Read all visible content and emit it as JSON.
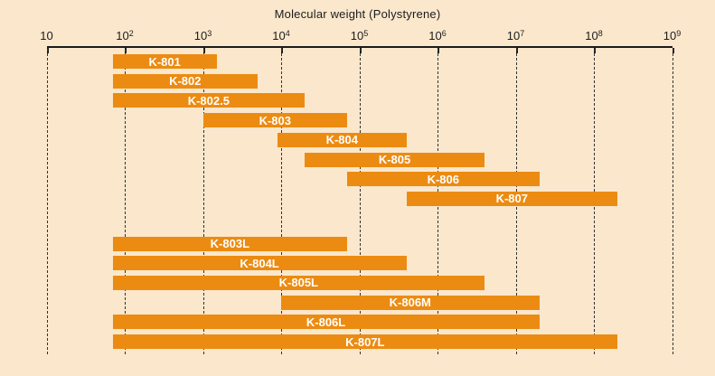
{
  "chart_data": {
    "type": "bar",
    "orientation": "horizontal-range",
    "title": "Molecular weight (Polystyrene)",
    "x_axis": {
      "scale": "log10",
      "min": 10,
      "max": 1000000000,
      "tick_labels": [
        "10",
        "10^2",
        "10^3",
        "10^4",
        "10^5",
        "10^6",
        "10^7",
        "10^8",
        "10^9"
      ],
      "grid": "dashed-vertical"
    },
    "legend": "none",
    "bars": [
      {
        "label": "K-801",
        "mw_from": 70,
        "mw_to": 1500,
        "section": 1
      },
      {
        "label": "K-802",
        "mw_from": 70,
        "mw_to": 5000,
        "section": 1
      },
      {
        "label": "K-802.5",
        "mw_from": 70,
        "mw_to": 20000,
        "section": 1
      },
      {
        "label": "K-803",
        "mw_from": 1000,
        "mw_to": 70000,
        "section": 1
      },
      {
        "label": "K-804",
        "mw_from": 9000,
        "mw_to": 400000,
        "section": 1
      },
      {
        "label": "K-805",
        "mw_from": 20000,
        "mw_to": 4000000,
        "section": 1
      },
      {
        "label": "K-806",
        "mw_from": 70000,
        "mw_to": 20000000,
        "section": 1
      },
      {
        "label": "K-807",
        "mw_from": 400000,
        "mw_to": 200000000,
        "section": 1
      },
      {
        "label": "K-803L",
        "mw_from": 70,
        "mw_to": 70000,
        "section": 2
      },
      {
        "label": "K-804L",
        "mw_from": 70,
        "mw_to": 400000,
        "section": 2
      },
      {
        "label": "K-805L",
        "mw_from": 70,
        "mw_to": 4000000,
        "section": 2
      },
      {
        "label": "K-806M",
        "mw_from": 10000,
        "mw_to": 20000000,
        "section": 2
      },
      {
        "label": "K-806L",
        "mw_from": 70,
        "mw_to": 20000000,
        "section": 2
      },
      {
        "label": "K-807L",
        "mw_from": 70,
        "mw_to": 200000000,
        "section": 2
      }
    ],
    "colors": {
      "background": "#FBE7CC",
      "bar": "#EC8B12",
      "bar_label": "#FFFFFF",
      "axis": "#1C1C1C",
      "gridline": "#333333"
    }
  }
}
